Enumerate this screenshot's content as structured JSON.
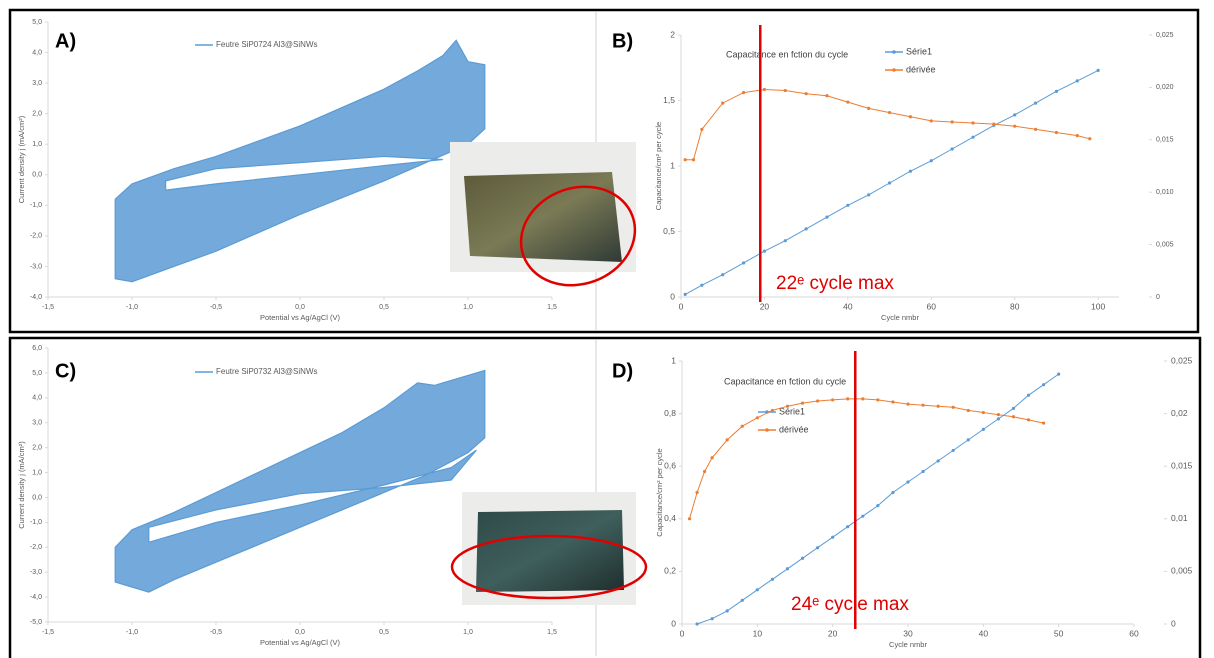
{
  "chart_data": [
    {
      "type": "line",
      "panel_label": "A)",
      "x_label": "Potential vs Ag/AgCl (V)",
      "y_label": "Current density j (mA/cm²)",
      "xlim": [
        -1.5,
        1.5
      ],
      "xticks": [
        {
          "value": -1.5,
          "label": "-1,5"
        },
        {
          "value": -1,
          "label": "-1,0"
        },
        {
          "value": -0.5,
          "label": "-0,5"
        },
        {
          "value": 0,
          "label": "0,0"
        },
        {
          "value": 0.5,
          "label": "0,5"
        },
        {
          "value": 1,
          "label": "1,0"
        },
        {
          "value": 1.5,
          "label": "1,5"
        }
      ],
      "ylim": [
        -4,
        5
      ],
      "yticks": [
        {
          "value": -4,
          "label": "-4,0"
        },
        {
          "value": -3,
          "label": "-3,0"
        },
        {
          "value": -2,
          "label": "-2,0"
        },
        {
          "value": -1,
          "label": "-1,0"
        },
        {
          "value": 0,
          "label": "0,0"
        },
        {
          "value": 1,
          "label": "1,0"
        },
        {
          "value": 2,
          "label": "2,0"
        },
        {
          "value": 3,
          "label": "3,0"
        },
        {
          "value": 4,
          "label": "4,0"
        },
        {
          "value": 5,
          "label": "5,0"
        }
      ],
      "series": [
        {
          "name": "Feutre SiP0724 Al3@SiNWs",
          "color": "#5b9bd5",
          "x": [
            -1.1,
            -1.0,
            -0.75,
            -0.5,
            -0.25,
            0,
            0.25,
            0.5,
            0.7,
            0.85,
            0.93,
            1.0,
            1.1,
            1.1,
            1.0,
            0.75,
            0.5,
            0.25,
            0,
            -0.25,
            -0.5,
            -0.75,
            -1.0,
            -1.1,
            -1.1,
            null,
            -0.8,
            -0.5,
            0,
            0.5,
            0.85,
            0.5,
            0,
            -0.5,
            -0.8,
            -0.8
          ],
          "values": [
            -0.8,
            -0.3,
            0.2,
            0.6,
            1.1,
            1.6,
            2.2,
            2.8,
            3.4,
            3.9,
            4.4,
            3.7,
            3.6,
            1.5,
            1.0,
            0.4,
            -0.2,
            -0.75,
            -1.3,
            -1.9,
            -2.5,
            -3.0,
            -3.5,
            -3.4,
            -0.8,
            null,
            -0.5,
            -0.3,
            0.0,
            0.3,
            0.5,
            0.6,
            0.4,
            0.2,
            -0.2,
            -0.5
          ]
        }
      ]
    },
    {
      "type": "line",
      "panel_label": "B)",
      "title": "Capacitance en fction du cycle",
      "x_label": "Cycle nmbr",
      "y_label": "Capacitance/cm² per cycle",
      "annotation": "22ᵉ cycle max",
      "vline": {
        "x": 19,
        "color": "#e00000"
      },
      "xlim": [
        0,
        105
      ],
      "xticks": [
        0,
        20,
        40,
        60,
        80,
        100
      ],
      "ylim": [
        0,
        2
      ],
      "yticks": [
        0,
        {
          "value": 0.5,
          "label": "0,5"
        },
        1,
        {
          "value": 1.5,
          "label": "1,5"
        },
        2
      ],
      "y2lim": [
        0,
        0.025
      ],
      "y2ticks": [
        0,
        {
          "value": 0.005,
          "label": "0,005"
        },
        {
          "value": 0.01,
          "label": "0,010"
        },
        {
          "value": 0.015,
          "label": "0,015"
        },
        {
          "value": 0.02,
          "label": "0,020"
        },
        {
          "value": 0.025,
          "label": "0,025"
        }
      ],
      "series": [
        {
          "name": "Série1",
          "color": "#5b9bd5",
          "x": [
            1,
            5,
            10,
            15,
            20,
            25,
            30,
            35,
            40,
            45,
            50,
            55,
            60,
            65,
            70,
            75,
            80,
            85,
            90,
            95,
            100
          ],
          "values": [
            0.02,
            0.09,
            0.17,
            0.26,
            0.35,
            0.43,
            0.52,
            0.61,
            0.7,
            0.78,
            0.87,
            0.96,
            1.04,
            1.13,
            1.22,
            1.31,
            1.39,
            1.48,
            1.57,
            1.65,
            1.73
          ]
        },
        {
          "name": "dérivée",
          "color": "#ed7d31",
          "axis": "y2",
          "x": [
            1,
            3,
            5,
            10,
            15,
            20,
            25,
            30,
            35,
            40,
            45,
            50,
            55,
            60,
            65,
            70,
            75,
            80,
            85,
            90,
            95,
            98
          ],
          "values": [
            0.0131,
            0.0131,
            0.016,
            0.0185,
            0.0195,
            0.0198,
            0.0197,
            0.0194,
            0.0192,
            0.0186,
            0.018,
            0.0176,
            0.0172,
            0.0168,
            0.0167,
            0.0166,
            0.0165,
            0.0163,
            0.016,
            0.0157,
            0.0154,
            0.0151
          ]
        }
      ]
    },
    {
      "type": "line",
      "panel_label": "C)",
      "x_label": "Potential vs Ag/AgCl (V)",
      "y_label": "Current density j (mA/cm²)",
      "xlim": [
        -1.5,
        1.5
      ],
      "xticks": [
        {
          "value": -1.5,
          "label": "-1,5"
        },
        {
          "value": -1,
          "label": "-1,0"
        },
        {
          "value": -0.5,
          "label": "-0,5"
        },
        {
          "value": 0,
          "label": "0,0"
        },
        {
          "value": 0.5,
          "label": "0,5"
        },
        {
          "value": 1,
          "label": "1,0"
        },
        {
          "value": 1.5,
          "label": "1,5"
        }
      ],
      "ylim": [
        -5,
        6
      ],
      "yticks": [
        {
          "value": -5,
          "label": "-5,0"
        },
        {
          "value": -4,
          "label": "-4,0"
        },
        {
          "value": -3,
          "label": "-3,0"
        },
        {
          "value": -2,
          "label": "-2,0"
        },
        {
          "value": -1,
          "label": "-1,0"
        },
        {
          "value": 0,
          "label": "0,0"
        },
        {
          "value": 1,
          "label": "1,0"
        },
        {
          "value": 2,
          "label": "2,0"
        },
        {
          "value": 3,
          "label": "3,0"
        },
        {
          "value": 4,
          "label": "4,0"
        },
        {
          "value": 5,
          "label": "5,0"
        },
        {
          "value": 6,
          "label": "6,0"
        }
      ],
      "series": [
        {
          "name": "Feutre SiP0732 Al3@SiNWs",
          "color": "#5b9bd5",
          "x": [
            -1.1,
            -1.0,
            -0.75,
            -0.5,
            -0.25,
            0,
            0.25,
            0.5,
            0.6,
            0.7,
            0.8,
            0.9,
            1.0,
            1.1,
            1.1,
            1.0,
            0.75,
            0.5,
            0.25,
            0,
            -0.25,
            -0.5,
            -0.75,
            -0.9,
            -1.1,
            -1.1,
            null,
            -0.9,
            -0.5,
            0,
            0.5,
            0.9,
            1.05,
            0.9,
            0.5,
            0,
            -0.5,
            -0.9,
            -0.9
          ],
          "values": [
            -2.0,
            -1.3,
            -0.6,
            0.2,
            1.0,
            1.8,
            2.6,
            3.6,
            4.1,
            4.6,
            4.5,
            4.7,
            4.9,
            5.1,
            2.4,
            1.8,
            0.9,
            0.2,
            -0.5,
            -1.2,
            -1.9,
            -2.6,
            -3.3,
            -3.8,
            -3.4,
            -2.0,
            null,
            -1.8,
            -1.0,
            -0.3,
            0.5,
            1.2,
            1.9,
            0.7,
            0.4,
            0.15,
            -0.5,
            -1.2,
            -1.8
          ]
        }
      ]
    },
    {
      "type": "line",
      "panel_label": "D)",
      "title": "Capacitance en fction du cycle",
      "x_label": "Cycle nmbr",
      "y_label": "Capacitance/cm² per cycle",
      "annotation": "24ᵉ cycle max",
      "vline": {
        "x": 23,
        "color": "#e00000"
      },
      "xlim": [
        0,
        60
      ],
      "xticks": [
        0,
        10,
        20,
        30,
        40,
        50,
        60
      ],
      "ylim": [
        0,
        1
      ],
      "yticks": [
        0,
        {
          "value": 0.2,
          "label": "0,2"
        },
        {
          "value": 0.4,
          "label": "0,4"
        },
        {
          "value": 0.6,
          "label": "0,6"
        },
        {
          "value": 0.8,
          "label": "0,8"
        },
        1
      ],
      "y2lim": [
        0,
        0.025
      ],
      "y2ticks": [
        0,
        {
          "value": 0.005,
          "label": "0,005"
        },
        {
          "value": 0.01,
          "label": "0,01"
        },
        {
          "value": 0.015,
          "label": "0,015"
        },
        {
          "value": 0.02,
          "label": "0,02"
        },
        {
          "value": 0.025,
          "label": "0,025"
        }
      ],
      "series": [
        {
          "name": "Série1",
          "color": "#5b9bd5",
          "x": [
            2,
            4,
            6,
            8,
            10,
            12,
            14,
            16,
            18,
            20,
            22,
            24,
            26,
            28,
            30,
            32,
            34,
            36,
            38,
            40,
            42,
            44,
            46,
            48,
            50
          ],
          "values": [
            0.0,
            0.02,
            0.05,
            0.09,
            0.13,
            0.17,
            0.21,
            0.25,
            0.29,
            0.33,
            0.37,
            0.41,
            0.45,
            0.5,
            0.54,
            0.58,
            0.62,
            0.66,
            0.7,
            0.74,
            0.78,
            0.82,
            0.87,
            0.91,
            0.95
          ]
        },
        {
          "name": "dérivée",
          "color": "#ed7d31",
          "axis": "y2",
          "x": [
            1,
            2,
            3,
            4,
            6,
            8,
            10,
            12,
            14,
            16,
            18,
            20,
            22,
            24,
            26,
            28,
            30,
            32,
            34,
            36,
            38,
            40,
            42,
            44,
            46,
            48
          ],
          "values": [
            0.01,
            0.0125,
            0.0145,
            0.0158,
            0.0175,
            0.0188,
            0.0196,
            0.0203,
            0.0207,
            0.021,
            0.0212,
            0.0213,
            0.0214,
            0.0214,
            0.0213,
            0.0211,
            0.0209,
            0.0208,
            0.0207,
            0.0206,
            0.0203,
            0.0201,
            0.0199,
            0.0197,
            0.0194,
            0.0191
          ]
        }
      ]
    }
  ]
}
